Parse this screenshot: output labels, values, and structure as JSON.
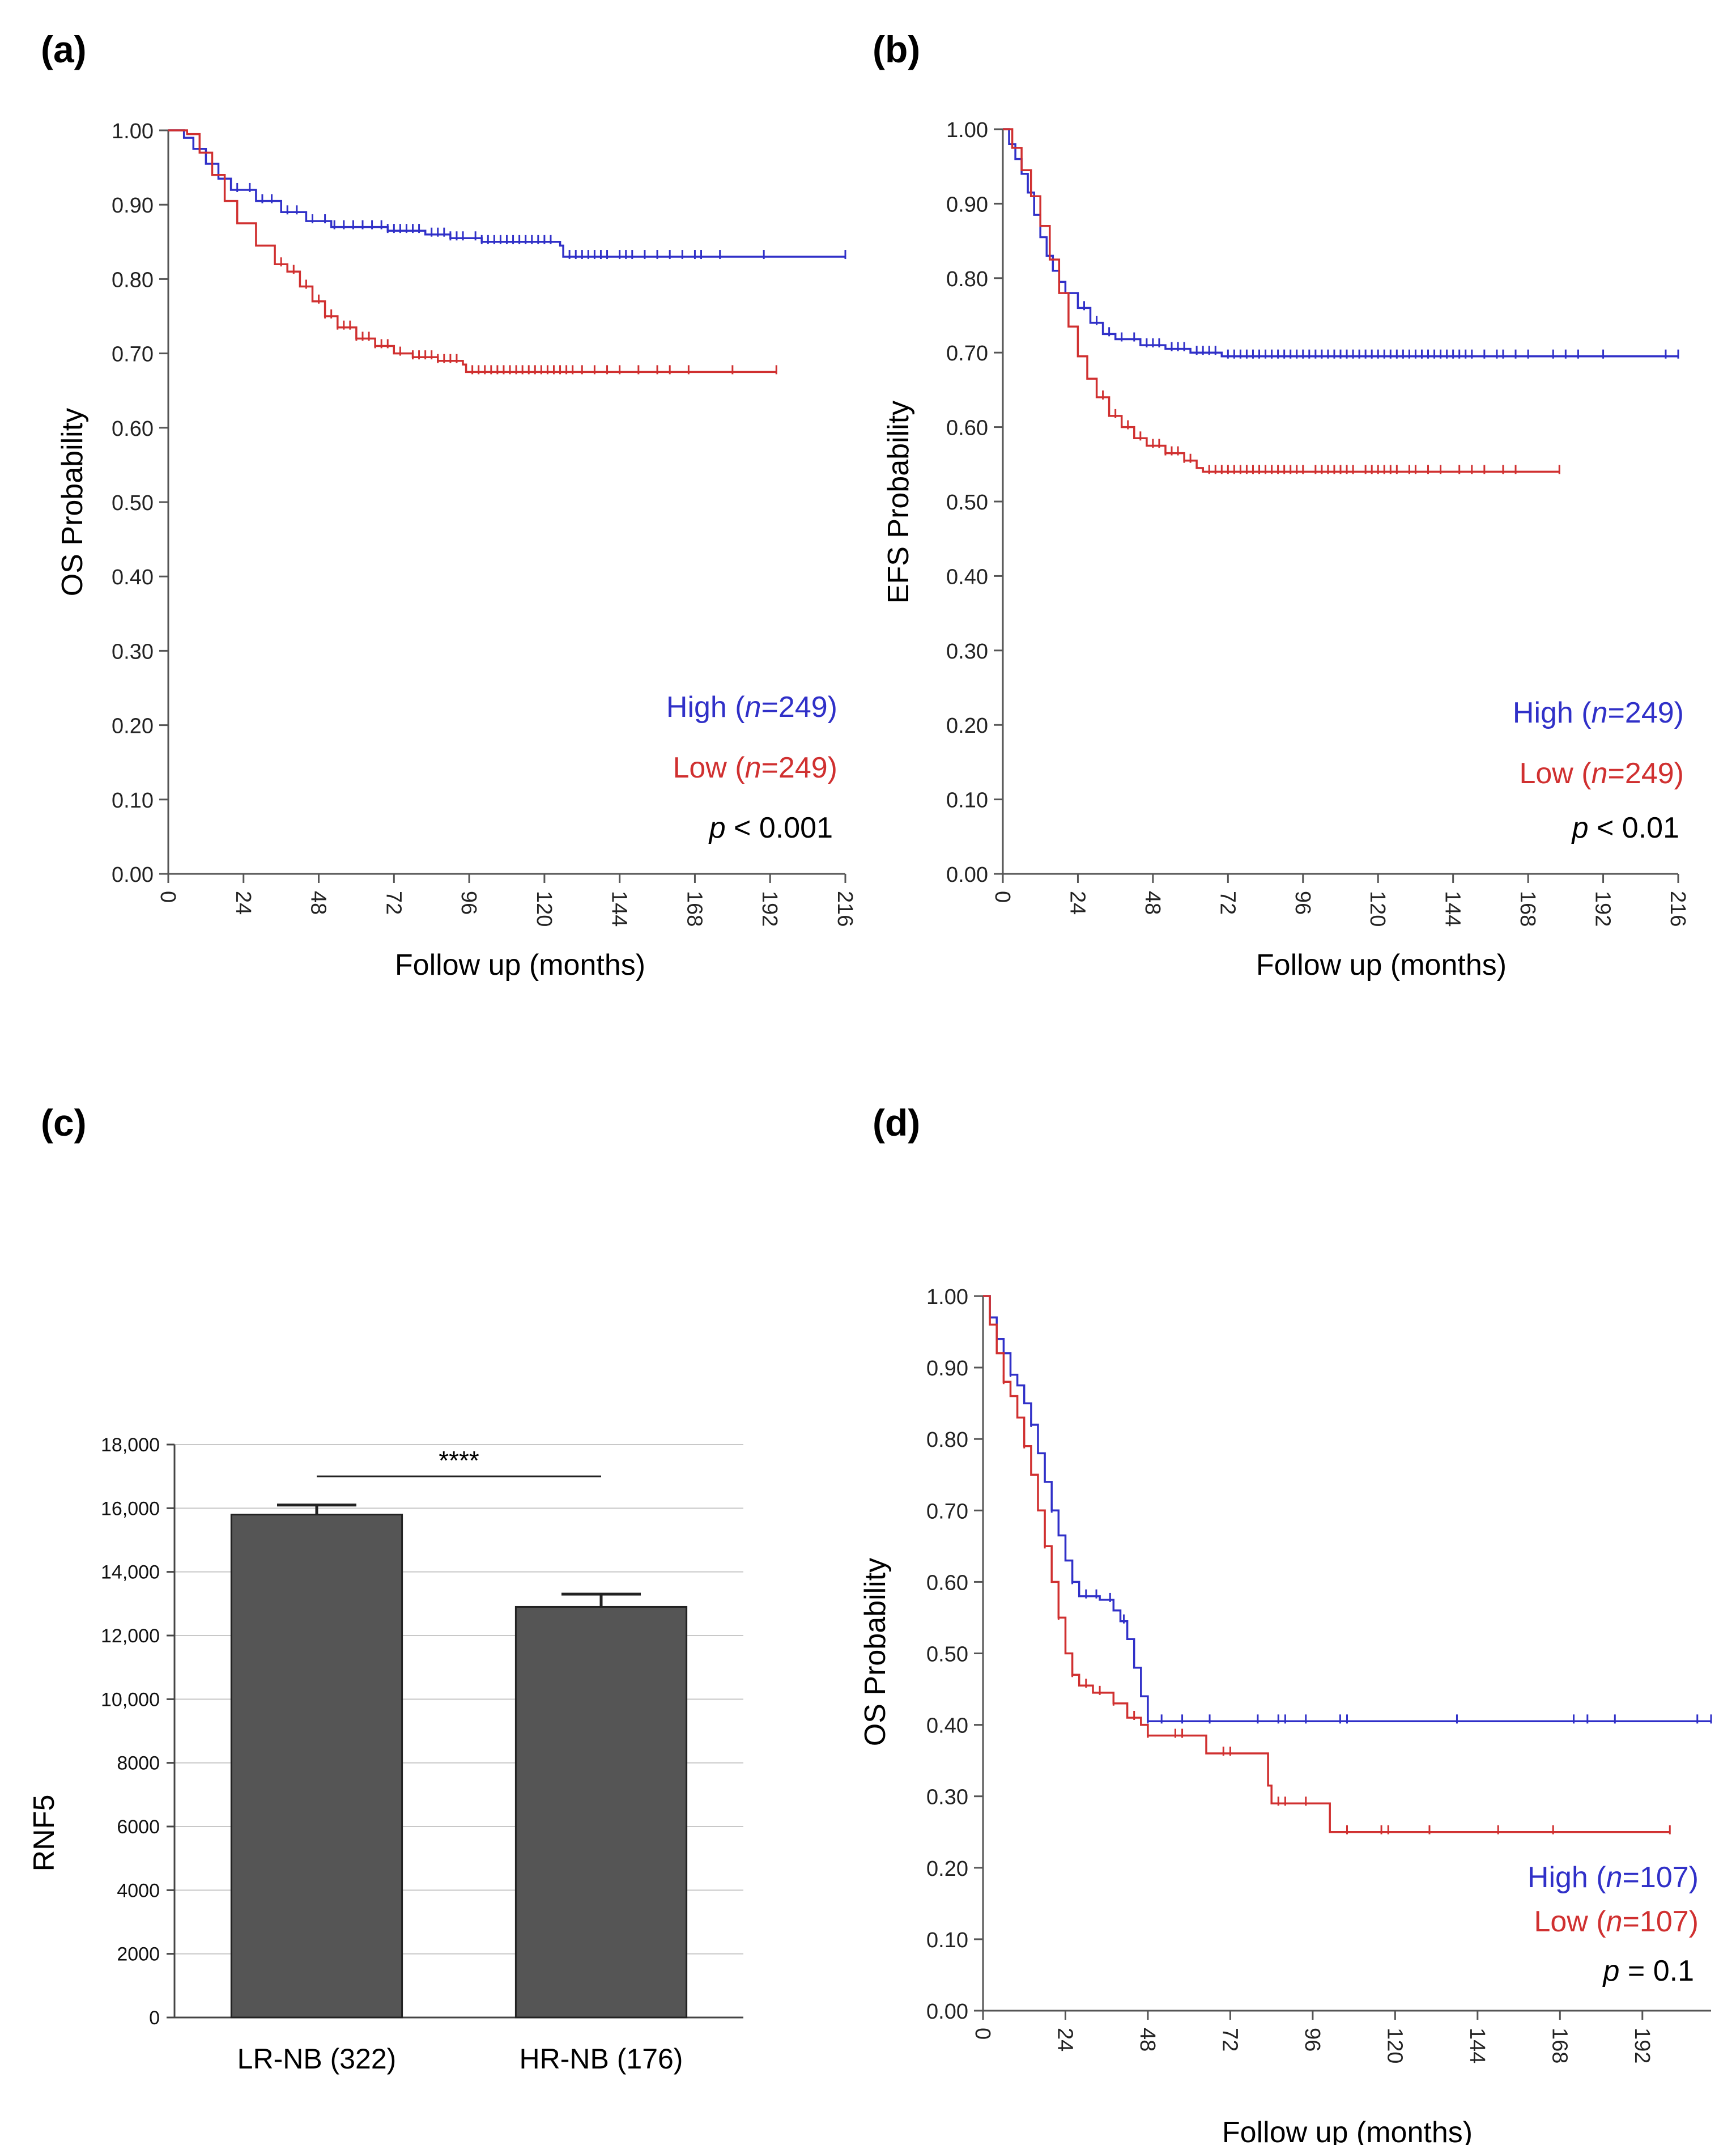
{
  "chart_data": [
    {
      "id": "a",
      "type": "line",
      "panel_label": "(a)",
      "ylabel": "OS Probability",
      "xlabel": "Follow up (months)",
      "xlim": [
        0,
        216
      ],
      "ylim": [
        0,
        1
      ],
      "xticks": [
        "0",
        "24",
        "48",
        "72",
        "96",
        "120",
        "144",
        "168",
        "192",
        "216"
      ],
      "yticks": [
        "0.00",
        "0.10",
        "0.20",
        "0.30",
        "0.40",
        "0.50",
        "0.60",
        "0.70",
        "0.80",
        "0.90",
        "1.00"
      ],
      "series": [
        {
          "name": "High",
          "n": "249",
          "color": "#3030c8",
          "points": [
            [
              0,
              1.0
            ],
            [
              5,
              0.99
            ],
            [
              8,
              0.975
            ],
            [
              12,
              0.955
            ],
            [
              16,
              0.935
            ],
            [
              20,
              0.92
            ],
            [
              28,
              0.905
            ],
            [
              36,
              0.89
            ],
            [
              44,
              0.878
            ],
            [
              52,
              0.87
            ],
            [
              70,
              0.865
            ],
            [
              82,
              0.86
            ],
            [
              90,
              0.855
            ],
            [
              100,
              0.85
            ],
            [
              125,
              0.845
            ],
            [
              126,
              0.83
            ],
            [
              216,
              0.83
            ]
          ],
          "censor": [
            22,
            26,
            30,
            33,
            38,
            41,
            46,
            50,
            53,
            56,
            59,
            62,
            65,
            68,
            70,
            72,
            74,
            76,
            78,
            80,
            84,
            86,
            88,
            90,
            92,
            94,
            98,
            100,
            102,
            104,
            106,
            108,
            110,
            112,
            114,
            116,
            118,
            120,
            122,
            128,
            130,
            132,
            134,
            136,
            138,
            140,
            144,
            146,
            148,
            152,
            156,
            160,
            164,
            168,
            170,
            176,
            190,
            216
          ]
        },
        {
          "name": "Low",
          "n": "249",
          "color": "#d03030",
          "points": [
            [
              0,
              1.0
            ],
            [
              6,
              0.995
            ],
            [
              10,
              0.97
            ],
            [
              14,
              0.94
            ],
            [
              18,
              0.905
            ],
            [
              22,
              0.875
            ],
            [
              28,
              0.845
            ],
            [
              34,
              0.82
            ],
            [
              38,
              0.81
            ],
            [
              42,
              0.79
            ],
            [
              46,
              0.77
            ],
            [
              50,
              0.75
            ],
            [
              54,
              0.735
            ],
            [
              60,
              0.72
            ],
            [
              66,
              0.71
            ],
            [
              72,
              0.7
            ],
            [
              78,
              0.695
            ],
            [
              86,
              0.69
            ],
            [
              94,
              0.685
            ],
            [
              95,
              0.675
            ],
            [
              194,
              0.675
            ]
          ],
          "censor": [
            36,
            40,
            44,
            48,
            50,
            52,
            54,
            56,
            58,
            60,
            62,
            64,
            66,
            68,
            70,
            74,
            78,
            80,
            82,
            84,
            86,
            88,
            90,
            92,
            97,
            99,
            101,
            103,
            105,
            107,
            109,
            111,
            113,
            115,
            117,
            119,
            121,
            123,
            125,
            127,
            129,
            132,
            136,
            140,
            144,
            150,
            156,
            160,
            166,
            180,
            194
          ]
        }
      ],
      "legend": {
        "high_text": "High (",
        "low_text": "Low (",
        "n_label": "n",
        "eq": "=",
        "close": ")"
      },
      "pvalue": {
        "p": "p",
        "text": " < 0.001"
      }
    },
    {
      "id": "b",
      "type": "line",
      "panel_label": "(b)",
      "ylabel": "EFS Probability",
      "xlabel": "Follow up (months)",
      "xlim": [
        0,
        216
      ],
      "ylim": [
        0,
        1
      ],
      "xticks": [
        "0",
        "24",
        "48",
        "72",
        "96",
        "120",
        "144",
        "168",
        "192",
        "216"
      ],
      "yticks": [
        "0.00",
        "0.10",
        "0.20",
        "0.30",
        "0.40",
        "0.50",
        "0.60",
        "0.70",
        "0.80",
        "0.90",
        "1.00"
      ],
      "series": [
        {
          "name": "High",
          "n": "249",
          "color": "#3030c8",
          "points": [
            [
              0,
              1.0
            ],
            [
              2,
              0.98
            ],
            [
              4,
              0.96
            ],
            [
              6,
              0.94
            ],
            [
              8,
              0.915
            ],
            [
              10,
              0.885
            ],
            [
              12,
              0.855
            ],
            [
              14,
              0.83
            ],
            [
              16,
              0.81
            ],
            [
              18,
              0.795
            ],
            [
              20,
              0.78
            ],
            [
              24,
              0.76
            ],
            [
              28,
              0.74
            ],
            [
              32,
              0.725
            ],
            [
              36,
              0.718
            ],
            [
              44,
              0.71
            ],
            [
              52,
              0.705
            ],
            [
              60,
              0.7
            ],
            [
              70,
              0.695
            ],
            [
              216,
              0.695
            ]
          ],
          "censor": [
            26,
            30,
            34,
            38,
            42,
            46,
            48,
            50,
            54,
            56,
            58,
            62,
            64,
            66,
            68,
            72,
            74,
            76,
            78,
            80,
            82,
            84,
            86,
            88,
            90,
            92,
            94,
            96,
            98,
            100,
            102,
            104,
            106,
            108,
            110,
            112,
            114,
            116,
            118,
            120,
            122,
            124,
            126,
            128,
            130,
            132,
            134,
            136,
            138,
            140,
            142,
            144,
            146,
            148,
            150,
            154,
            158,
            160,
            164,
            168,
            176,
            180,
            184,
            192,
            212,
            216
          ]
        },
        {
          "name": "Low",
          "n": "249",
          "color": "#d03030",
          "points": [
            [
              0,
              1.0
            ],
            [
              3,
              0.975
            ],
            [
              6,
              0.945
            ],
            [
              9,
              0.91
            ],
            [
              12,
              0.87
            ],
            [
              15,
              0.825
            ],
            [
              18,
              0.78
            ],
            [
              21,
              0.735
            ],
            [
              24,
              0.695
            ],
            [
              27,
              0.665
            ],
            [
              30,
              0.64
            ],
            [
              34,
              0.615
            ],
            [
              38,
              0.6
            ],
            [
              42,
              0.585
            ],
            [
              46,
              0.575
            ],
            [
              52,
              0.565
            ],
            [
              58,
              0.555
            ],
            [
              62,
              0.545
            ],
            [
              64,
              0.54
            ],
            [
              178,
              0.54
            ]
          ],
          "censor": [
            32,
            36,
            40,
            44,
            48,
            50,
            52,
            54,
            56,
            58,
            60,
            66,
            68,
            70,
            72,
            74,
            76,
            78,
            80,
            82,
            84,
            86,
            88,
            90,
            92,
            94,
            96,
            100,
            102,
            104,
            106,
            108,
            110,
            112,
            116,
            118,
            120,
            122,
            124,
            126,
            130,
            132,
            136,
            140,
            146,
            150,
            154,
            160,
            164,
            178
          ]
        }
      ],
      "legend": {
        "high_text": "High (",
        "low_text": "Low (",
        "n_label": "n",
        "eq": "=",
        "close": ")"
      },
      "pvalue": {
        "p": "p",
        "text": " < 0.01"
      }
    },
    {
      "id": "c",
      "type": "bar",
      "panel_label": "(c)",
      "ylabel": "RNF5",
      "categories": [
        "LR-NB (322)",
        "HR-NB (176)"
      ],
      "values": [
        15800,
        12900
      ],
      "errors": [
        300,
        400
      ],
      "ylim": [
        0,
        18000
      ],
      "yticks": [
        "0",
        "2000",
        "4000",
        "6000",
        "8000",
        "10,000",
        "12,000",
        "14,000",
        "16,000",
        "18,000"
      ],
      "significance": "****",
      "bar_color": "#555555"
    },
    {
      "id": "d",
      "type": "line",
      "panel_label": "(d)",
      "ylabel": "OS Probability",
      "xlabel": "Follow up (months)",
      "xlim": [
        0,
        212
      ],
      "ylim": [
        0,
        1
      ],
      "xticks": [
        "0",
        "24",
        "48",
        "72",
        "96",
        "120",
        "144",
        "168",
        "192"
      ],
      "yticks": [
        "0.00",
        "0.10",
        "0.20",
        "0.30",
        "0.40",
        "0.50",
        "0.60",
        "0.70",
        "0.80",
        "0.90",
        "1.00"
      ],
      "series": [
        {
          "name": "High",
          "n": "107",
          "color": "#3030c8",
          "points": [
            [
              0,
              1.0
            ],
            [
              2,
              0.97
            ],
            [
              4,
              0.94
            ],
            [
              6,
              0.92
            ],
            [
              8,
              0.89
            ],
            [
              10,
              0.875
            ],
            [
              12,
              0.85
            ],
            [
              14,
              0.82
            ],
            [
              16,
              0.78
            ],
            [
              18,
              0.74
            ],
            [
              20,
              0.7
            ],
            [
              22,
              0.665
            ],
            [
              24,
              0.63
            ],
            [
              26,
              0.6
            ],
            [
              28,
              0.58
            ],
            [
              34,
              0.575
            ],
            [
              38,
              0.56
            ],
            [
              40,
              0.545
            ],
            [
              42,
              0.52
            ],
            [
              44,
              0.48
            ],
            [
              46,
              0.44
            ],
            [
              48,
              0.405
            ],
            [
              212,
              0.405
            ]
          ],
          "censor": [
            8,
            14,
            20,
            26,
            30,
            33,
            37,
            41,
            48,
            52,
            58,
            66,
            80,
            86,
            88,
            94,
            104,
            106,
            138,
            172,
            176,
            184,
            208,
            212
          ]
        },
        {
          "name": "Low",
          "n": "107",
          "color": "#d03030",
          "points": [
            [
              0,
              1.0
            ],
            [
              2,
              0.96
            ],
            [
              4,
              0.92
            ],
            [
              6,
              0.88
            ],
            [
              8,
              0.86
            ],
            [
              10,
              0.83
            ],
            [
              12,
              0.79
            ],
            [
              14,
              0.75
            ],
            [
              16,
              0.7
            ],
            [
              18,
              0.65
            ],
            [
              20,
              0.6
            ],
            [
              22,
              0.55
            ],
            [
              24,
              0.5
            ],
            [
              26,
              0.47
            ],
            [
              28,
              0.455
            ],
            [
              32,
              0.445
            ],
            [
              38,
              0.43
            ],
            [
              42,
              0.41
            ],
            [
              46,
              0.4
            ],
            [
              48,
              0.385
            ],
            [
              64,
              0.385
            ],
            [
              65,
              0.36
            ],
            [
              82,
              0.36
            ],
            [
              83,
              0.315
            ],
            [
              84,
              0.29
            ],
            [
              100,
              0.29
            ],
            [
              101,
              0.25
            ],
            [
              200,
              0.25
            ]
          ],
          "censor": [
            6,
            12,
            18,
            22,
            26,
            30,
            34,
            38,
            44,
            48,
            56,
            58,
            70,
            72,
            86,
            88,
            94,
            106,
            116,
            118,
            130,
            150,
            166,
            200
          ]
        }
      ],
      "legend": {
        "high_text": "High (",
        "low_text": "Low (",
        "n_label": "n",
        "eq": "=",
        "close": ")"
      },
      "pvalue": {
        "p": "p",
        "text": " = 0.1"
      }
    }
  ]
}
